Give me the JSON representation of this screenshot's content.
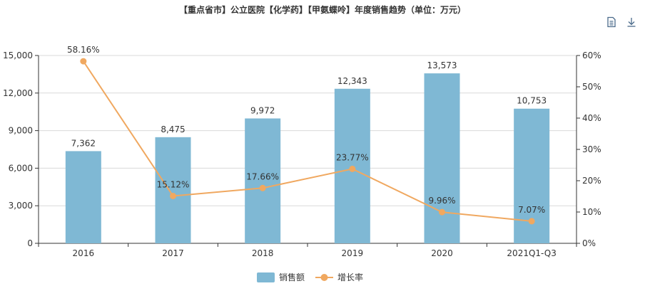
{
  "title": "【重点省市】公立医院【化学药】【甲氨蝶呤】年度销售趋势（单位：万元）",
  "toolbar": {
    "icons": [
      "data-view-icon",
      "download-icon"
    ]
  },
  "colors": {
    "bar": "#7fb8d4",
    "line": "#f0a860",
    "axis": "#333333",
    "grid": "#d9d9d9",
    "text": "#333333"
  },
  "chart_data": {
    "type": "bar",
    "categories": [
      "2016",
      "2017",
      "2018",
      "2019",
      "2020",
      "2021Q1-Q3"
    ],
    "series": [
      {
        "name": "销售额",
        "type": "bar",
        "values": [
          7362,
          8475,
          9972,
          12343,
          13573,
          10753
        ],
        "labels": [
          "7,362",
          "8,475",
          "9,972",
          "12,343",
          "13,573",
          "10,753"
        ],
        "axis": "left"
      },
      {
        "name": "增长率",
        "type": "line",
        "values": [
          58.16,
          15.12,
          17.66,
          23.77,
          9.96,
          7.07
        ],
        "labels": [
          "58.16%",
          "15.12%",
          "17.66%",
          "23.77%",
          "9.96%",
          "7.07%"
        ],
        "axis": "right"
      }
    ],
    "y_left": {
      "min": 0,
      "max": 15000,
      "ticks": [
        0,
        3000,
        6000,
        9000,
        12000,
        15000
      ],
      "tick_labels": [
        "0",
        "3,000",
        "6,000",
        "9,000",
        "12,000",
        "15,000"
      ]
    },
    "y_right": {
      "min": 0,
      "max": 60,
      "ticks": [
        0,
        10,
        20,
        30,
        40,
        50,
        60
      ],
      "tick_labels": [
        "0%",
        "10%",
        "20%",
        "30%",
        "40%",
        "50%",
        "60%"
      ]
    },
    "grid": true,
    "legend_position": "bottom-center"
  }
}
